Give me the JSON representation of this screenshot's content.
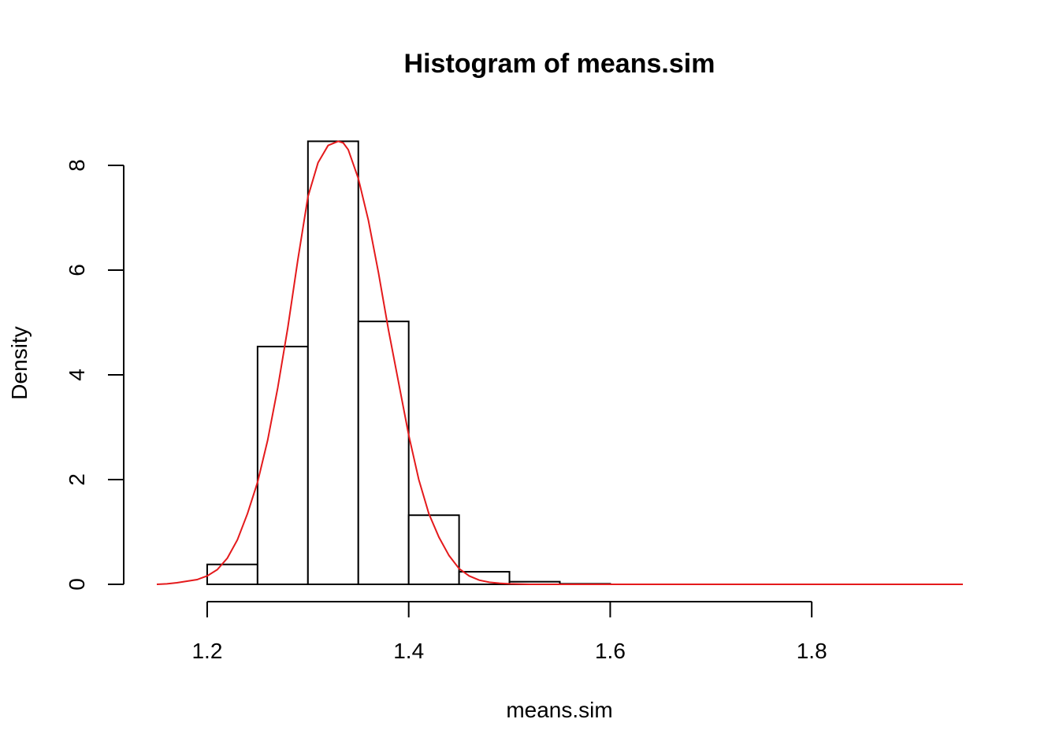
{
  "chart_data": {
    "type": "bar",
    "title": "Histogram of means.sim",
    "xlabel": "means.sim",
    "ylabel": "Density",
    "xlim": [
      1.15,
      1.95
    ],
    "ylim": [
      0,
      8.5
    ],
    "x_ticks": [
      1.2,
      1.4,
      1.6,
      1.8
    ],
    "x_tick_labels": [
      "1.2",
      "1.4",
      "1.6",
      "1.8"
    ],
    "y_ticks": [
      0,
      2,
      4,
      6,
      8
    ],
    "y_tick_labels": [
      "0",
      "2",
      "4",
      "6",
      "8"
    ],
    "bins": [
      {
        "from": 1.15,
        "to": 1.2,
        "density": 0.0
      },
      {
        "from": 1.2,
        "to": 1.25,
        "density": 0.38
      },
      {
        "from": 1.25,
        "to": 1.3,
        "density": 4.54
      },
      {
        "from": 1.3,
        "to": 1.35,
        "density": 8.46
      },
      {
        "from": 1.35,
        "to": 1.4,
        "density": 5.02
      },
      {
        "from": 1.4,
        "to": 1.45,
        "density": 1.32
      },
      {
        "from": 1.45,
        "to": 1.5,
        "density": 0.24
      },
      {
        "from": 1.5,
        "to": 1.55,
        "density": 0.05
      },
      {
        "from": 1.55,
        "to": 1.6,
        "density": 0.01
      },
      {
        "from": 1.6,
        "to": 1.65,
        "density": 0.0
      },
      {
        "from": 1.65,
        "to": 1.7,
        "density": 0.0
      },
      {
        "from": 1.7,
        "to": 1.75,
        "density": 0.0
      },
      {
        "from": 1.75,
        "to": 1.8,
        "density": 0.0
      },
      {
        "from": 1.8,
        "to": 1.85,
        "density": 0.0
      },
      {
        "from": 1.85,
        "to": 1.9,
        "density": 0.0
      },
      {
        "from": 1.9,
        "to": 1.95,
        "density": 0.0
      }
    ],
    "series": [
      {
        "type": "line",
        "color": "#e41a1c",
        "x": [
          1.15,
          1.16,
          1.17,
          1.18,
          1.19,
          1.2,
          1.21,
          1.22,
          1.23,
          1.24,
          1.25,
          1.26,
          1.27,
          1.28,
          1.29,
          1.3,
          1.31,
          1.32,
          1.33,
          1.335,
          1.34,
          1.35,
          1.36,
          1.37,
          1.38,
          1.39,
          1.4,
          1.41,
          1.42,
          1.43,
          1.44,
          1.45,
          1.46,
          1.47,
          1.48,
          1.49,
          1.5,
          1.52,
          1.55,
          1.6,
          1.7,
          1.8,
          1.9,
          1.95
        ],
        "y": [
          0.0,
          0.01,
          0.03,
          0.06,
          0.09,
          0.16,
          0.28,
          0.5,
          0.85,
          1.35,
          1.95,
          2.75,
          3.75,
          4.9,
          6.2,
          7.4,
          8.05,
          8.38,
          8.46,
          8.43,
          8.3,
          7.75,
          6.95,
          5.95,
          4.85,
          3.85,
          2.85,
          2.0,
          1.35,
          0.9,
          0.55,
          0.3,
          0.16,
          0.08,
          0.04,
          0.02,
          0.01,
          0.0,
          0.0,
          0.0,
          0.0,
          0.0,
          0.0,
          0.0
        ]
      }
    ],
    "grid": false
  }
}
